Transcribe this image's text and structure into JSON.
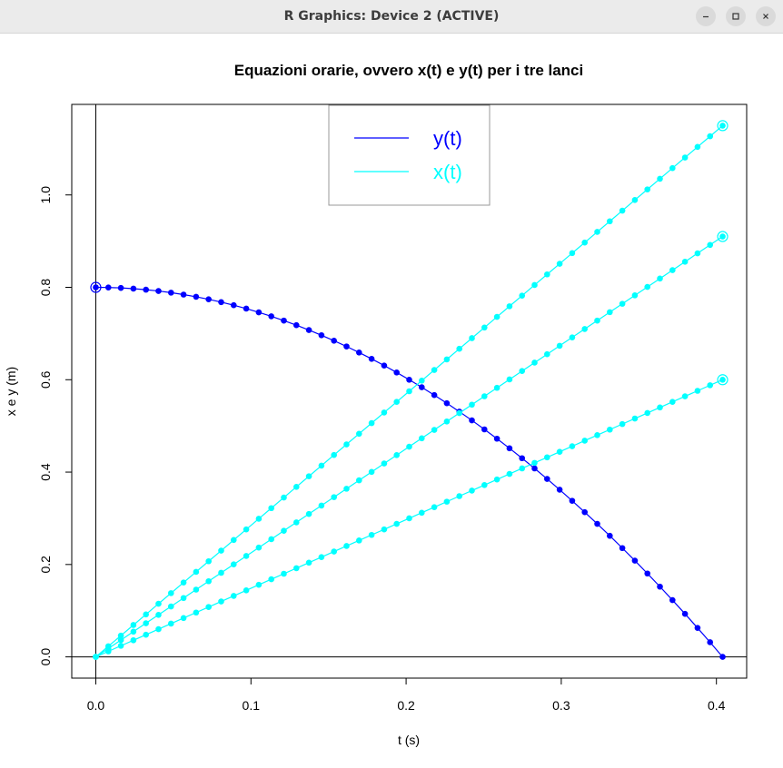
{
  "window": {
    "title": "R Graphics: Device 2 (ACTIVE)",
    "buttons": {
      "minimize": "minimize-icon",
      "maximize": "maximize-icon",
      "close": "close-icon"
    }
  },
  "chart_data": {
    "type": "line",
    "title": "Equazioni orarie, ovvero x(t) e y(t) per i tre lanci",
    "xlabel": "t (s)",
    "ylabel": "x e y (m)",
    "xlim": [
      -0.0155,
      0.4195
    ],
    "ylim": [
      -0.046,
      1.196
    ],
    "xticks": [
      0.0,
      0.1,
      0.2,
      0.3,
      0.4
    ],
    "xtick_labels": [
      "0.0",
      "0.1",
      "0.2",
      "0.3",
      "0.4"
    ],
    "yticks": [
      0.0,
      0.2,
      0.4,
      0.6,
      0.8,
      1.0
    ],
    "ytick_labels": [
      "0.0",
      "0.2",
      "0.4",
      "0.6",
      "0.8",
      "1.0"
    ],
    "grid": false,
    "reference_lines": {
      "vertical_x": 0,
      "horizontal_y": 0
    },
    "legend": {
      "position": "top-center",
      "entries": [
        {
          "label": "y(t)",
          "color": "#0000ff"
        },
        {
          "label": "x(t)",
          "color": "#00ffff"
        }
      ]
    },
    "colors": {
      "y_series": "#0000ff",
      "x_series": "#00ffff"
    },
    "t_max": 0.404,
    "samples": 51,
    "series": [
      {
        "kind": "y",
        "y0": 0.8,
        "y_end": 0.0,
        "color": "#0000ff"
      },
      {
        "kind": "x",
        "x_end": 1.15,
        "color": "#00ffff"
      },
      {
        "kind": "x",
        "x_end": 0.91,
        "color": "#00ffff"
      },
      {
        "kind": "x",
        "x_end": 0.6,
        "color": "#00ffff"
      }
    ]
  }
}
